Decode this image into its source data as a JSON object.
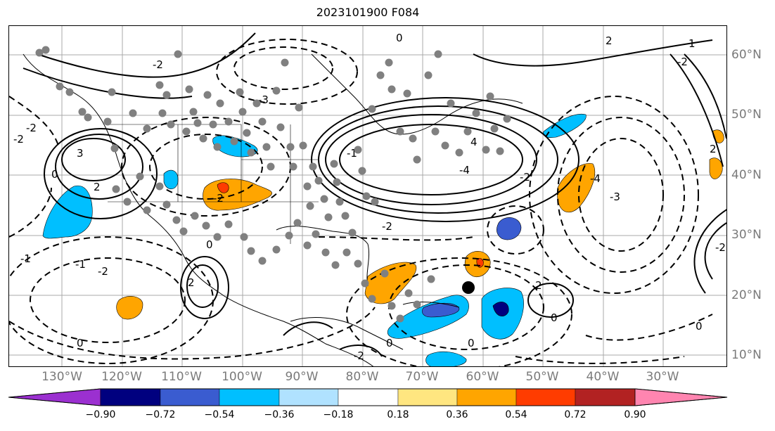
{
  "title": "2023101900 F084",
  "lat_labels": [
    "60°N",
    "50°N",
    "40°N",
    "30°N",
    "20°N",
    "10°N"
  ],
  "lon_labels": [
    "130°W",
    "120°W",
    "110°W",
    "100°W",
    "90°W",
    "80°W",
    "70°W",
    "60°W",
    "50°W",
    "40°W",
    "30°W"
  ],
  "colorbar": {
    "ticks": [
      "−0.90",
      "−0.72",
      "−0.54",
      "−0.36",
      "−0.18",
      "0.18",
      "0.36",
      "0.54",
      "0.72",
      "0.90"
    ],
    "colors": [
      "#9b30d0",
      "#00007f",
      "#3a5cd0",
      "#00bfff",
      "#b0e2ff",
      "#ffffff",
      "#ffe680",
      "#ffa500",
      "#ff3c00",
      "#b22222",
      "#ff85b0"
    ]
  },
  "contour_labels": [
    "3",
    "2",
    "0",
    "-2",
    "-2",
    "-1",
    "2",
    "-1",
    "0",
    "-2",
    "-3",
    "-4",
    "-2",
    "-4",
    "-3",
    "-2",
    "-1",
    "0",
    "2",
    "4",
    "2",
    "1",
    "-2",
    "2",
    "-2",
    "0",
    "-2",
    "0",
    "0",
    "-2",
    "-2",
    "0",
    "0"
  ],
  "markers": {
    "station_color": "#808080",
    "storm_color": "#000000"
  }
}
